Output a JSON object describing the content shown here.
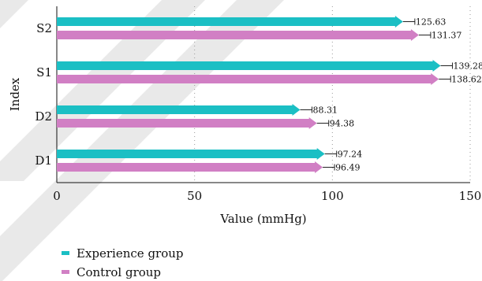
{
  "chart_data": {
    "type": "bar",
    "orientation": "horizontal",
    "categories": [
      "D1",
      "D2",
      "S1",
      "S2"
    ],
    "series": [
      {
        "name": "Experience group",
        "color": "#1bbfc4",
        "values": [
          97.24,
          88.31,
          139.28,
          125.63
        ]
      },
      {
        "name": "Control group",
        "color": "#d17fc4",
        "values": [
          96.49,
          94.38,
          138.62,
          131.37
        ]
      }
    ],
    "data_labels": [
      [
        "97.24",
        "88.31",
        "139.28",
        "125.63"
      ],
      [
        "96.49",
        "94.38",
        "138.62",
        "131.37"
      ]
    ],
    "xlabel": "Value (mmHg)",
    "ylabel": "Index",
    "xlim": [
      0,
      150
    ],
    "xticks": [
      0,
      50,
      100,
      150
    ],
    "xtick_labels": [
      "0",
      "50",
      "100",
      "150"
    ],
    "grid": "vertical dotted",
    "legend": "bottom-left"
  }
}
